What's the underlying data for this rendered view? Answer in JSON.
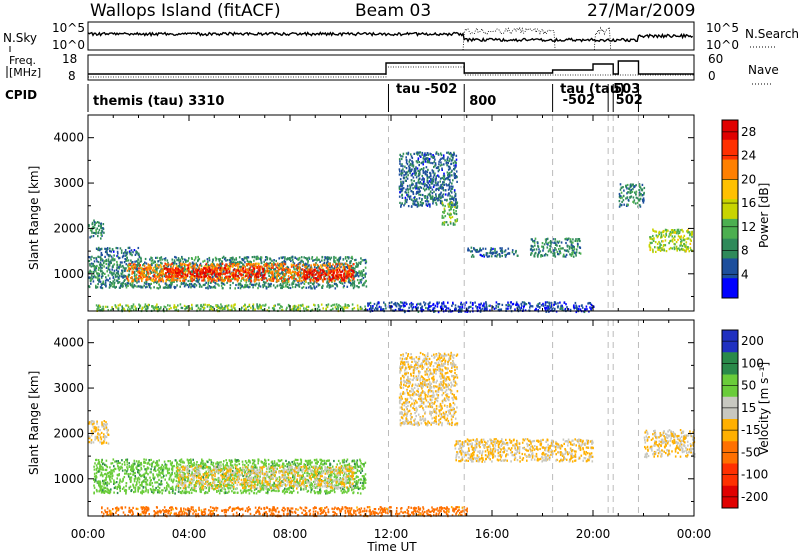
{
  "header": {
    "station": "Wallops Island (fitACF)",
    "beam": "Beam 03",
    "date": "27/Mar/2009"
  },
  "strip": {
    "nsky_label": "N.Sky",
    "nsky_ticks": [
      "10^5",
      "10^0"
    ],
    "nsearch_label": "N.Search",
    "nsearch_ticks": [
      "10^5",
      "10^0"
    ],
    "freq_label": "Freq.",
    "freq_unit": "[MHz]",
    "freq_ticks": [
      "18",
      "8"
    ],
    "nave_label": "Nave",
    "nave_ticks": [
      "60",
      "0"
    ],
    "cpid_label": "CPID",
    "cpid_segments": [
      {
        "label": "themis (tau) 3310",
        "start_hr": 0.0
      },
      {
        "label": "tau -502",
        "start_hr": 12.0
      },
      {
        "label": "800",
        "start_hr": 14.9
      },
      {
        "label": "tau (tau)",
        "start_hr": 18.5
      },
      {
        "label": "-502",
        "start_hr": 18.6
      },
      {
        "label": "503",
        "start_hr": 20.6
      },
      {
        "label": "502",
        "start_hr": 20.7
      }
    ],
    "cpid_boundaries_hr": [
      11.9,
      14.9,
      18.4,
      20.6,
      20.8,
      21.8
    ]
  },
  "chart_data": [
    {
      "type": "heatmap",
      "title": "",
      "ylabel": "Slant Range [km]",
      "xlabel": "",
      "xlim": [
        0,
        24
      ],
      "ylim": [
        180,
        4500
      ],
      "yticks": [
        1000,
        2000,
        3000,
        4000
      ],
      "xtick_labels": [
        "00:00",
        "04:00",
        "08:00",
        "12:00",
        "16:00",
        "20:00",
        "00:00"
      ],
      "colorbar": {
        "label": "Power [dB]",
        "ticks": [
          4,
          8,
          12,
          16,
          20,
          24,
          28
        ],
        "range": [
          0,
          30
        ],
        "colors": [
          "#0000ff",
          "#1d4f9c",
          "#2f8a5a",
          "#4caf50",
          "#c8d400",
          "#ffc000",
          "#ff8000",
          "#ff3000",
          "#e00000"
        ]
      },
      "regions": [
        {
          "x": [
            0.0,
            0.6
          ],
          "y": [
            1800,
            2200
          ],
          "value": 8
        },
        {
          "x": [
            0.3,
            2.0
          ],
          "y": [
            1400,
            1600
          ],
          "value": 6
        },
        {
          "x": [
            0.0,
            11.0
          ],
          "y": [
            700,
            1400
          ],
          "value": 8
        },
        {
          "x": [
            1.5,
            10.5
          ],
          "y": [
            850,
            1250
          ],
          "value": 22
        },
        {
          "x": [
            3.0,
            7.0
          ],
          "y": [
            950,
            1150
          ],
          "value": 28
        },
        {
          "x": [
            8.5,
            10.5
          ],
          "y": [
            880,
            1120
          ],
          "value": 28
        },
        {
          "x": [
            0.3,
            11.0
          ],
          "y": [
            200,
            350
          ],
          "value": 12
        },
        {
          "x": [
            12.3,
            14.6
          ],
          "y": [
            2500,
            3700
          ],
          "value": 6
        },
        {
          "x": [
            14.0,
            14.6
          ],
          "y": [
            2100,
            2600
          ],
          "value": 12
        },
        {
          "x": [
            15.0,
            17.0
          ],
          "y": [
            1400,
            1600
          ],
          "value": 6
        },
        {
          "x": [
            17.5,
            19.5
          ],
          "y": [
            1400,
            1800
          ],
          "value": 8
        },
        {
          "x": [
            21.0,
            22.0
          ],
          "y": [
            2500,
            3000
          ],
          "value": 8
        },
        {
          "x": [
            22.2,
            23.9
          ],
          "y": [
            1500,
            2000
          ],
          "value": 14
        },
        {
          "x": [
            11.0,
            20.0
          ],
          "y": [
            180,
            400
          ],
          "value": 4
        }
      ]
    },
    {
      "type": "heatmap",
      "title": "",
      "ylabel": "Slant Range [km]",
      "xlabel": "Time UT",
      "xlim": [
        0,
        24
      ],
      "ylim": [
        180,
        4500
      ],
      "yticks": [
        1000,
        2000,
        3000,
        4000
      ],
      "xtick_labels": [
        "00:00",
        "04:00",
        "08:00",
        "12:00",
        "16:00",
        "20:00",
        "00:00"
      ],
      "colorbar": {
        "label": "Velocity [m s⁻¹]",
        "ticks": [
          200,
          100,
          50,
          15,
          -15,
          -50,
          -100,
          -200
        ],
        "colors": [
          "#2030c0",
          "#2a8a4a",
          "#6acc3a",
          "#c8c8c0",
          "#ffb000",
          "#ff7000",
          "#ff3000",
          "#e00000"
        ]
      },
      "regions": [
        {
          "x": [
            0.0,
            0.8
          ],
          "y": [
            1800,
            2300
          ],
          "value": 0
        },
        {
          "x": [
            0.2,
            11.0
          ],
          "y": [
            700,
            1450
          ],
          "value": 60
        },
        {
          "x": [
            3.5,
            10.5
          ],
          "y": [
            800,
            1300
          ],
          "value": 0
        },
        {
          "x": [
            12.3,
            14.6
          ],
          "y": [
            2200,
            3800
          ],
          "value": 0
        },
        {
          "x": [
            14.5,
            20.0
          ],
          "y": [
            1400,
            1900
          ],
          "value": 0
        },
        {
          "x": [
            22.0,
            24.0
          ],
          "y": [
            1500,
            2100
          ],
          "value": 0
        },
        {
          "x": [
            0.5,
            15.0
          ],
          "y": [
            200,
            400
          ],
          "value": -50
        }
      ]
    }
  ]
}
